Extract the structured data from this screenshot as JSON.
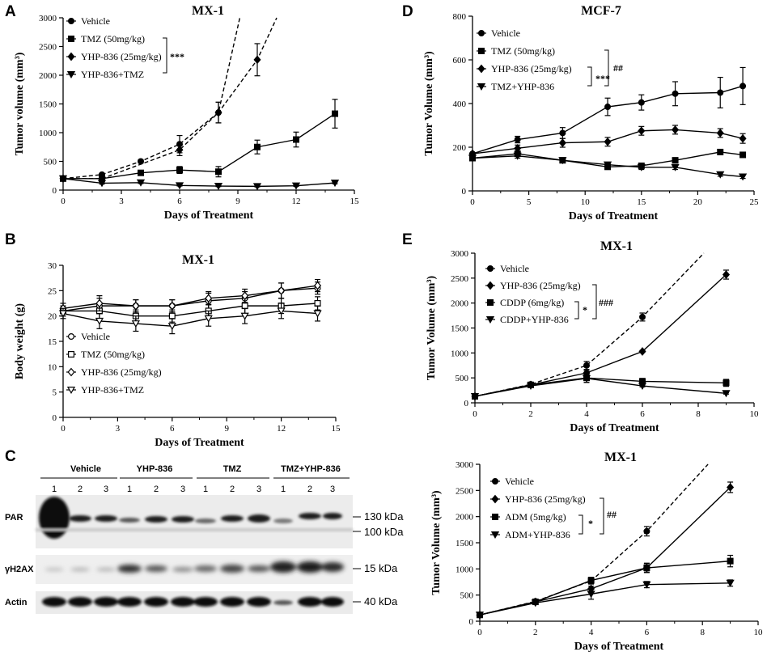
{
  "panels": {
    "a": "A",
    "b": "B",
    "c": "C",
    "d": "D",
    "e": "E"
  },
  "chart_data": [
    {
      "id": "A",
      "type": "line",
      "title": "MX-1",
      "xlabel": "Days of Treatment",
      "ylabel": "Tumor volume (mm³)",
      "xlim": [
        0,
        15
      ],
      "ylim": [
        0,
        3000
      ],
      "xticks": [
        0,
        3,
        6,
        9,
        12,
        15
      ],
      "yticks": [
        0,
        500,
        1000,
        1500,
        2000,
        2500,
        3000
      ],
      "significance": [
        "***"
      ],
      "series": [
        {
          "name": "Vehicle",
          "marker": "circle",
          "x": [
            0,
            2,
            4,
            6,
            8
          ],
          "y": [
            200,
            270,
            500,
            800,
            1350
          ],
          "err": [
            0,
            20,
            30,
            150,
            180
          ],
          "trend": {
            "dash": true,
            "x": [
              0,
              2,
              4,
              6,
              8,
              9.1
            ],
            "y": [
              200,
              270,
              500,
              800,
              1350,
              3000
            ]
          }
        },
        {
          "name": "TMZ (50mg/kg)",
          "marker": "square",
          "x": [
            0,
            2,
            4,
            6,
            8,
            10,
            12,
            14
          ],
          "y": [
            200,
            200,
            300,
            350,
            320,
            750,
            880,
            1330
          ],
          "err": [
            0,
            20,
            30,
            60,
            90,
            120,
            130,
            250
          ]
        },
        {
          "name": "YHP-836 (25mg/kg)",
          "marker": "diamond",
          "x": [
            0,
            2,
            6,
            8,
            10
          ],
          "y": [
            200,
            200,
            700,
            1350,
            2270
          ],
          "err": [
            0,
            20,
            100,
            180,
            280
          ],
          "trend": {
            "dash": true,
            "x": [
              0,
              2,
              6,
              8,
              10,
              11
            ],
            "y": [
              200,
              200,
              700,
              1350,
              2270,
              3000
            ]
          }
        },
        {
          "name": "YHP-836+TMZ",
          "marker": "triangle-down",
          "x": [
            0,
            2,
            4,
            6,
            8,
            10,
            12,
            14
          ],
          "y": [
            200,
            120,
            130,
            80,
            70,
            65,
            75,
            125
          ],
          "err": [
            0,
            15,
            15,
            10,
            10,
            10,
            10,
            15
          ]
        }
      ]
    },
    {
      "id": "B",
      "type": "line",
      "title": "MX-1",
      "xlabel": "Days of Treatment",
      "ylabel": "Body weight (g)",
      "xlim": [
        0,
        15
      ],
      "ylim": [
        0,
        30
      ],
      "xticks": [
        0,
        3,
        6,
        9,
        12,
        15
      ],
      "yticks": [
        0,
        5,
        10,
        15,
        20,
        25,
        30
      ],
      "series": [
        {
          "name": "Vehicle",
          "marker": "open-circle",
          "x": [
            0,
            2,
            4,
            6,
            8,
            10,
            12,
            14
          ],
          "y": [
            21,
            22,
            22,
            22,
            23,
            23.5,
            25,
            25.5
          ],
          "err": [
            1,
            1.5,
            1.2,
            1.2,
            1.5,
            1.3,
            1.5,
            1.2
          ]
        },
        {
          "name": "TMZ (50mg/kg)",
          "marker": "open-square",
          "x": [
            0,
            2,
            4,
            6,
            8,
            10,
            12,
            14
          ],
          "y": [
            21,
            21,
            20,
            20,
            21,
            22,
            22,
            22.5
          ],
          "err": [
            1,
            1.5,
            1.2,
            1.2,
            1.3,
            1.5,
            1.5,
            1.3
          ]
        },
        {
          "name": "YHP-836 (25mg/kg)",
          "marker": "open-diamond",
          "x": [
            0,
            2,
            4,
            6,
            8,
            10,
            12,
            14
          ],
          "y": [
            21.5,
            22.5,
            22,
            22,
            23.5,
            24,
            25,
            26
          ],
          "err": [
            1,
            1.5,
            1.2,
            1.2,
            1.3,
            1.3,
            1.5,
            1.2
          ]
        },
        {
          "name": "YHP-836+TMZ",
          "marker": "open-triangle-down",
          "x": [
            0,
            2,
            4,
            6,
            8,
            10,
            12,
            14
          ],
          "y": [
            20.5,
            19,
            18.5,
            18,
            19.5,
            20,
            21,
            20.5
          ],
          "err": [
            1,
            1.5,
            1.5,
            1.5,
            1.5,
            1.5,
            1.5,
            1.5
          ]
        }
      ]
    },
    {
      "id": "D",
      "type": "line",
      "title": "MCF-7",
      "xlabel": "Days of Treatment",
      "ylabel": "Tumor Volume (mm³)",
      "xlim": [
        0,
        25
      ],
      "ylim": [
        0,
        800
      ],
      "xticks": [
        0,
        5,
        10,
        15,
        20,
        25
      ],
      "yticks": [
        0,
        200,
        400,
        600,
        800
      ],
      "significance": [
        "***",
        "##"
      ],
      "series": [
        {
          "name": "Vehicle",
          "marker": "circle",
          "x": [
            0,
            4,
            8,
            12,
            15,
            18,
            22,
            24
          ],
          "y": [
            170,
            235,
            265,
            385,
            405,
            445,
            450,
            480
          ],
          "err": [
            5,
            15,
            25,
            40,
            35,
            55,
            70,
            85
          ]
        },
        {
          "name": "TMZ (50mg/kg)",
          "marker": "square",
          "x": [
            0,
            4,
            8,
            12,
            15,
            18,
            22,
            24
          ],
          "y": [
            150,
            170,
            140,
            110,
            115,
            140,
            178,
            165
          ],
          "err": [
            5,
            10,
            10,
            10,
            10,
            12,
            10,
            10
          ]
        },
        {
          "name": "YHP-836 (25mg/kg)",
          "marker": "diamond",
          "x": [
            0,
            4,
            8,
            12,
            15,
            18,
            22,
            24
          ],
          "y": [
            170,
            195,
            220,
            225,
            275,
            280,
            265,
            240
          ],
          "err": [
            5,
            15,
            20,
            20,
            20,
            20,
            20,
            22
          ]
        },
        {
          "name": "TMZ+YHP-836",
          "marker": "triangle-down",
          "x": [
            0,
            4,
            8,
            12,
            15,
            18,
            22,
            24
          ],
          "y": [
            150,
            160,
            140,
            120,
            108,
            108,
            75,
            65
          ],
          "err": [
            5,
            10,
            10,
            10,
            10,
            10,
            8,
            8
          ]
        }
      ]
    },
    {
      "id": "E1",
      "type": "line",
      "title": "MX-1",
      "xlabel": "Days of Treatment",
      "ylabel": "Tumor Volume (mm³)",
      "xlim": [
        0,
        10
      ],
      "ylim": [
        0,
        3000
      ],
      "xticks": [
        0,
        2,
        4,
        6,
        8,
        10
      ],
      "yticks": [
        0,
        500,
        1000,
        1500,
        2000,
        2500,
        3000
      ],
      "significance": [
        "*",
        "###"
      ],
      "series": [
        {
          "name": "Vehicle",
          "marker": "circle",
          "x": [
            0,
            2,
            4,
            6
          ],
          "y": [
            130,
            370,
            750,
            1720
          ],
          "err": [
            0,
            40,
            80,
            80
          ],
          "trend": {
            "dash": true,
            "x": [
              0,
              2,
              4,
              6,
              8.2
            ],
            "y": [
              130,
              370,
              750,
              1720,
              3000
            ]
          }
        },
        {
          "name": "YHP-836 (25mg/kg)",
          "marker": "diamond",
          "x": [
            0,
            2,
            4,
            6,
            9
          ],
          "y": [
            130,
            360,
            600,
            1030,
            2570
          ],
          "err": [
            0,
            30,
            50,
            20,
            90
          ]
        },
        {
          "name": "CDDP (6mg/kg)",
          "marker": "square",
          "x": [
            0,
            2,
            4,
            6,
            9
          ],
          "y": [
            130,
            360,
            500,
            430,
            400
          ],
          "err": [
            0,
            30,
            90,
            60,
            70
          ]
        },
        {
          "name": "CDDP+YHP-836",
          "marker": "triangle-down",
          "x": [
            0,
            2,
            4,
            6,
            9
          ],
          "y": [
            130,
            340,
            490,
            340,
            190
          ],
          "err": [
            0,
            30,
            80,
            20,
            15
          ]
        }
      ]
    },
    {
      "id": "E2",
      "type": "line",
      "title": "MX-1",
      "xlabel": "Days of Treatment",
      "ylabel": "Tumor Volume (mm³)",
      "xlim": [
        0,
        10
      ],
      "ylim": [
        0,
        3000
      ],
      "xticks": [
        0,
        2,
        4,
        6,
        8,
        10
      ],
      "yticks": [
        0,
        500,
        1000,
        1500,
        2000,
        2500,
        3000
      ],
      "significance": [
        "*",
        "##"
      ],
      "series": [
        {
          "name": "Vehicle",
          "marker": "circle",
          "x": [
            0,
            2,
            4,
            6
          ],
          "y": [
            120,
            380,
            770,
            1720
          ],
          "err": [
            0,
            40,
            60,
            90
          ],
          "trend": {
            "dash": true,
            "x": [
              0,
              2,
              4,
              6,
              8.2
            ],
            "y": [
              120,
              380,
              770,
              1720,
              3000
            ]
          }
        },
        {
          "name": "YHP-836 (25mg/kg)",
          "marker": "diamond",
          "x": [
            0,
            2,
            4,
            6,
            9
          ],
          "y": [
            120,
            370,
            620,
            1020,
            2560
          ],
          "err": [
            0,
            30,
            50,
            80,
            100
          ]
        },
        {
          "name": "ADM (5mg/kg)",
          "marker": "square",
          "x": [
            0,
            2,
            4,
            6,
            9
          ],
          "y": [
            120,
            370,
            780,
            1020,
            1150
          ],
          "err": [
            0,
            30,
            60,
            90,
            110
          ]
        },
        {
          "name": "ADM+YHP-836",
          "marker": "triangle-down",
          "x": [
            0,
            2,
            4,
            6,
            9
          ],
          "y": [
            120,
            350,
            520,
            700,
            730
          ],
          "err": [
            0,
            30,
            100,
            60,
            60
          ]
        }
      ]
    }
  ],
  "western_blot": {
    "groups": [
      "Vehicle",
      "YHP-836",
      "TMZ",
      "TMZ+YHP-836"
    ],
    "lanes": [
      "1",
      "2",
      "3"
    ],
    "rows": [
      {
        "label": "PAR",
        "markers": [
          "130 kDa",
          "100 kDa"
        ]
      },
      {
        "label": "γH2AX",
        "markers": [
          "15 kDa"
        ]
      },
      {
        "label": "Actin",
        "markers": [
          "40 kDa"
        ]
      }
    ]
  }
}
